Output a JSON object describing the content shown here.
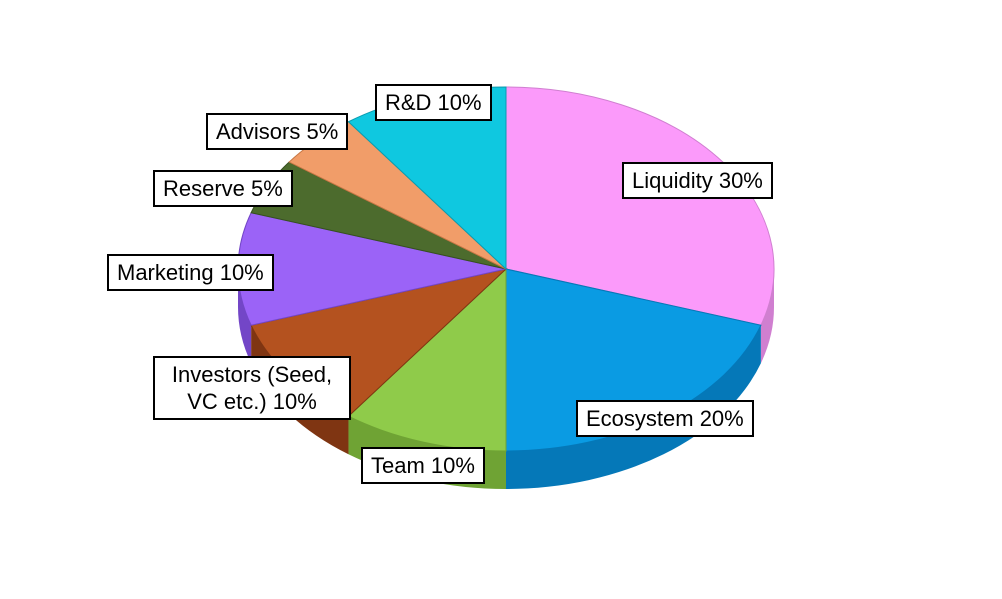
{
  "chart_data": {
    "type": "pie",
    "title": "",
    "categories": [
      "Liquidity",
      "Ecosystem",
      "Team",
      "Investors (Seed, VC etc.)",
      "Marketing",
      "Reserve",
      "Advisors",
      "R&D"
    ],
    "values": [
      30,
      20,
      10,
      10,
      10,
      5,
      5,
      10
    ],
    "unit": "%",
    "labels": [
      "Liquidity 30%",
      "Ecosystem 20%",
      "Team 10%",
      "Investors (Seed,\nVC etc.) 10%",
      "Marketing 10%",
      "Reserve  5%",
      "Advisors 5%",
      "R&D 10%"
    ],
    "colors": [
      "#fb9afa",
      "#0a9be3",
      "#8fcb4a",
      "#b4521f",
      "#9b63f7",
      "#4c6b2d",
      "#f19d69",
      "#0fc8e0"
    ],
    "side_colors": [
      "#d07fd0",
      "#0578b8",
      "#6fa334",
      "#7f3512",
      "#7346c7",
      "#36501f",
      "#c77845",
      "#0a9cb0"
    ],
    "start_angle_deg": 0,
    "direction": "clockwise",
    "style": "3d",
    "legend": "none",
    "grid": false
  }
}
